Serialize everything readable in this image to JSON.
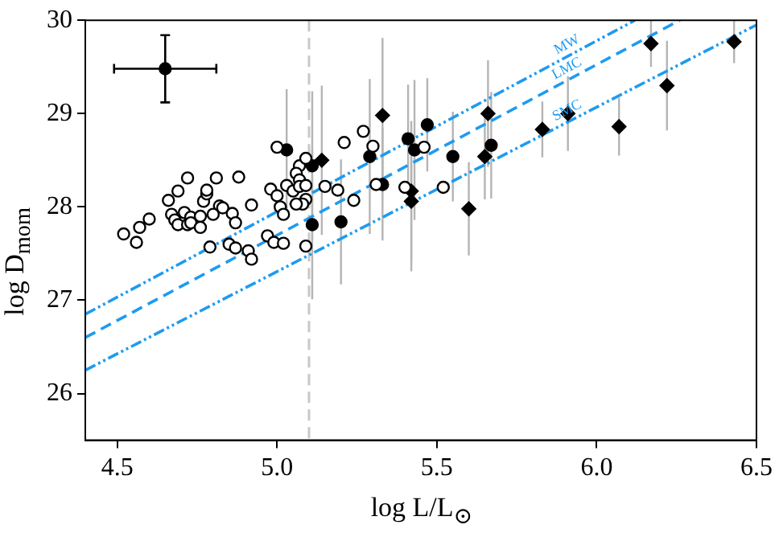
{
  "chart_data": {
    "type": "scatter",
    "xlabel": "log L/L$_{⊙}$",
    "ylabel": "log D$_{mom}$",
    "xlim": [
      4.4,
      6.5
    ],
    "ylim": [
      25.5,
      30
    ],
    "xticks": [
      4.5,
      {
        "value": 5,
        "label": "5.0"
      },
      5.5,
      {
        "value": 6,
        "label": "6.0"
      },
      6.5
    ],
    "yticks": [
      26,
      27,
      28,
      29,
      30
    ],
    "legend": false,
    "ref_lines": [
      {
        "axis": "x",
        "value": 5.1,
        "color": "#c8c8c8",
        "line_style": "dashed"
      }
    ],
    "series": [
      {
        "type": "scatter",
        "marker": "circle",
        "color": "#ffffff",
        "x": [
          4.52,
          4.56,
          4.57,
          4.6,
          4.66,
          4.69,
          4.72,
          4.67,
          4.68,
          4.71,
          4.73,
          4.69,
          4.72,
          4.73,
          4.76,
          4.76,
          4.77,
          4.78,
          4.78,
          4.81,
          4.82,
          4.83,
          4.8,
          4.86,
          4.87,
          4.88,
          4.92,
          4.98,
          5.0,
          5.0,
          5.01,
          5.03,
          5.02,
          5.05,
          5.07,
          5.06,
          5.07,
          5.07,
          5.09,
          5.09,
          5.09,
          5.08,
          4.97,
          4.99,
          5.02,
          5.09,
          5.15,
          5.19,
          5.24,
          5.21,
          5.27,
          5.3,
          5.31,
          5.4,
          4.79,
          4.85,
          4.87,
          4.91,
          4.92,
          5.06,
          5.46,
          5.52
        ],
        "values": [
          27.71,
          27.62,
          27.78,
          27.87,
          28.07,
          28.17,
          28.31,
          27.92,
          27.86,
          27.94,
          27.89,
          27.81,
          27.81,
          27.83,
          27.9,
          27.78,
          28.06,
          28.14,
          28.18,
          28.31,
          28.01,
          27.99,
          27.92,
          27.93,
          27.83,
          28.32,
          28.02,
          28.19,
          28.64,
          28.12,
          28.0,
          28.23,
          27.92,
          28.17,
          28.44,
          28.36,
          28.29,
          28.22,
          28.52,
          28.23,
          28.08,
          28.03,
          27.69,
          27.62,
          27.61,
          27.58,
          28.22,
          28.18,
          28.07,
          28.69,
          28.81,
          28.65,
          28.24,
          28.21,
          27.57,
          27.6,
          27.56,
          27.53,
          27.44,
          28.03,
          28.64,
          28.21
        ]
      },
      {
        "type": "scatter",
        "marker": "circle",
        "color": "#000000",
        "x": [
          5.03,
          5.11,
          5.11,
          5.2,
          5.29,
          5.33,
          5.41,
          5.43,
          5.47,
          5.55,
          5.67
        ],
        "values": [
          28.61,
          28.44,
          27.81,
          27.84,
          28.54,
          28.24,
          28.73,
          28.61,
          28.88,
          28.54,
          28.66
        ],
        "errors": [
          0.65,
          0.8,
          0.8,
          0.67,
          0.83,
          0.6,
          0.58,
          0.75,
          0.5,
          0.48,
          0.57
        ]
      },
      {
        "type": "scatter",
        "marker": "diamond",
        "color": "#000000",
        "x": [
          5.14,
          5.33,
          5.42,
          5.42,
          5.6,
          5.65,
          5.66,
          5.83,
          5.91,
          6.07,
          6.17,
          6.22,
          6.43
        ],
        "values": [
          28.5,
          28.98,
          28.17,
          28.06,
          27.98,
          28.54,
          29.0,
          28.83,
          29.0,
          28.86,
          29.75,
          29.3,
          29.77
        ],
        "errors": [
          0.8,
          0.83,
          0.75,
          0.75,
          0.5,
          0.46,
          0.57,
          0.3,
          0.4,
          0.31,
          0.25,
          0.48,
          0.23
        ]
      },
      {
        "type": "scatter",
        "marker": "circle",
        "color": "#000000",
        "x": [
          4.65
        ],
        "values": [
          29.48
        ],
        "errors": [
          0.36
        ],
        "xerrors": [
          0.16
        ]
      },
      {
        "type": "line",
        "name": "MW",
        "color": "#1e9bf0",
        "line_style": "dotted",
        "x": [
          4.4,
          6.12
        ],
        "values": [
          26.85,
          30
        ]
      },
      {
        "type": "line",
        "name": "LMC",
        "color": "#1e9bf0",
        "line_style": "dashed",
        "x": [
          4.4,
          6.26
        ],
        "values": [
          26.6,
          30
        ]
      },
      {
        "type": "line",
        "name": "SMC",
        "color": "#1e9bf0",
        "line_style": "dotted",
        "x": [
          4.4,
          6.5
        ],
        "values": [
          26.25,
          29.95
        ]
      }
    ]
  }
}
